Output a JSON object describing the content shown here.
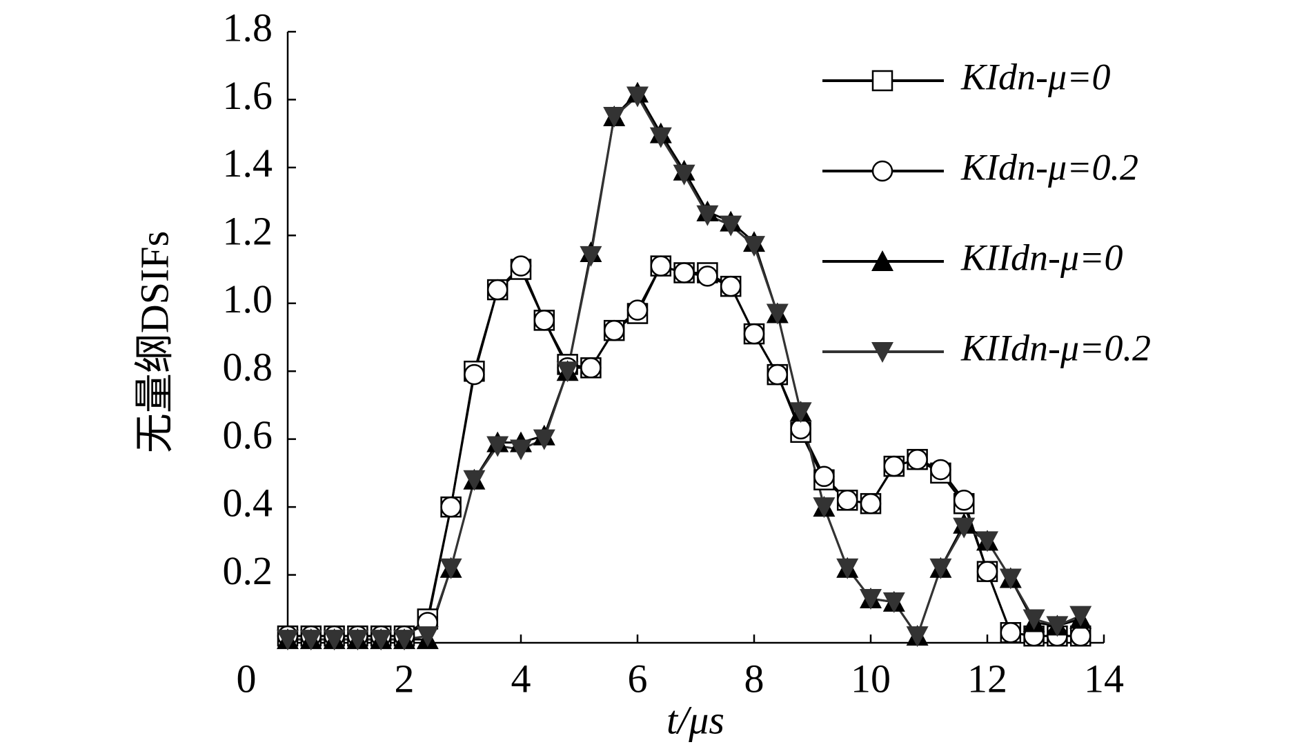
{
  "chart_data": {
    "type": "line",
    "xlabel": "t/μs",
    "ylabel": "无量纲DSIFs",
    "x": [
      0,
      0.4,
      0.8,
      1.2,
      1.6,
      2.0,
      2.4,
      2.8,
      3.2,
      3.6,
      4.0,
      4.4,
      4.8,
      5.2,
      5.6,
      6.0,
      6.4,
      6.8,
      7.2,
      7.6,
      8.0,
      8.4,
      8.8,
      9.2,
      9.6,
      10.0,
      10.4,
      10.8,
      11.2,
      11.6,
      12.0,
      12.4,
      12.8,
      13.2,
      13.6
    ],
    "series": [
      {
        "name": "KIdn-μ=0",
        "color": "#000000",
        "marker": "square",
        "values": [
          0.02,
          0.02,
          0.02,
          0.02,
          0.02,
          0.02,
          0.07,
          0.4,
          0.8,
          1.04,
          1.1,
          0.95,
          0.82,
          0.81,
          0.92,
          0.97,
          1.11,
          1.09,
          1.09,
          1.05,
          0.91,
          0.79,
          0.62,
          0.48,
          0.42,
          0.41,
          0.52,
          0.54,
          0.5,
          0.41,
          0.21,
          0.03,
          0.02,
          0.02,
          0.02
        ]
      },
      {
        "name": "KIdn-μ=0.2",
        "color": "#000000",
        "marker": "circle",
        "values": [
          0.02,
          0.02,
          0.02,
          0.02,
          0.02,
          0.02,
          0.06,
          0.4,
          0.79,
          1.04,
          1.11,
          0.95,
          0.81,
          0.81,
          0.92,
          0.98,
          1.11,
          1.09,
          1.08,
          1.05,
          0.91,
          0.79,
          0.63,
          0.49,
          0.42,
          0.41,
          0.52,
          0.54,
          0.51,
          0.42,
          0.21,
          0.03,
          0.02,
          0.02,
          0.02
        ]
      },
      {
        "name": "KIIdn-μ=0",
        "color": "#000000",
        "marker": "triangle",
        "values": [
          0.01,
          0.01,
          0.01,
          0.01,
          0.01,
          0.01,
          0.01,
          0.22,
          0.48,
          0.59,
          0.59,
          0.61,
          0.8,
          1.15,
          1.55,
          1.62,
          1.5,
          1.39,
          1.27,
          1.24,
          1.18,
          0.97,
          0.68,
          0.4,
          0.22,
          0.13,
          0.12,
          0.02,
          0.22,
          0.35,
          0.3,
          0.19,
          0.06,
          0.05,
          0.07
        ]
      },
      {
        "name": "KIIdn-μ=0.2",
        "color": "#333333",
        "marker": "triangle-down",
        "values": [
          0.01,
          0.01,
          0.01,
          0.01,
          0.01,
          0.01,
          0.02,
          0.22,
          0.48,
          0.58,
          0.57,
          0.6,
          0.8,
          1.14,
          1.55,
          1.61,
          1.49,
          1.38,
          1.26,
          1.23,
          1.17,
          0.97,
          0.68,
          0.4,
          0.22,
          0.13,
          0.12,
          0.02,
          0.22,
          0.34,
          0.3,
          0.19,
          0.07,
          0.05,
          0.08
        ]
      }
    ],
    "xlim": [
      0,
      14
    ],
    "xticks": [
      0,
      2,
      4,
      6,
      8,
      10,
      12,
      14
    ],
    "ylim": [
      0,
      1.8
    ],
    "yticks": [
      0.2,
      0.4,
      0.6,
      0.8,
      {
        "value": 1,
        "label": "1.0"
      },
      1.2,
      1.4,
      1.6,
      1.8
    ],
    "grid": false,
    "legend": "upper right"
  }
}
